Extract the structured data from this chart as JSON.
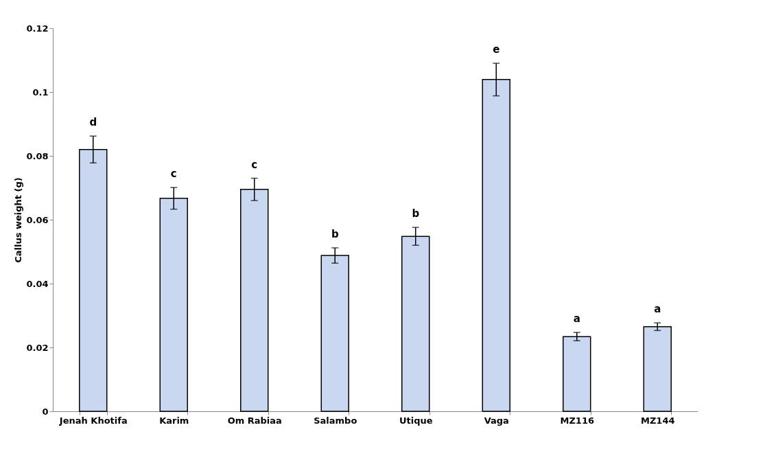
{
  "chart_data": {
    "type": "bar",
    "ylabel": "Callus weight (g)",
    "categories": [
      "Jenah Khotifa",
      "Karim",
      "Om Rabiaa",
      "Salambo",
      "Utique",
      "Vaga",
      "MZ116",
      "MZ144"
    ],
    "values": [
      0.082,
      0.0667,
      0.0695,
      0.0488,
      0.0548,
      0.1039,
      0.0234,
      0.0265
    ],
    "errors": [
      0.0042,
      0.0034,
      0.0035,
      0.0024,
      0.0028,
      0.0051,
      0.0013,
      0.0012
    ],
    "color": "#c9d8f0",
    "ylim": [
      0,
      0.12
    ],
    "yticks": [
      0,
      0.02,
      0.04,
      0.06,
      0.08,
      0.1,
      0.12
    ],
    "grid": false,
    "annotations": [
      "d",
      "c",
      "c",
      "b",
      "b",
      "e",
      "a",
      "a"
    ]
  }
}
